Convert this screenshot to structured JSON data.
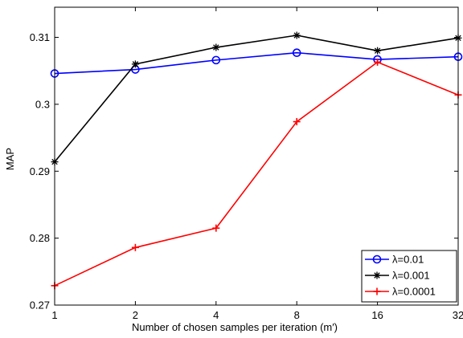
{
  "chart_data": {
    "type": "line",
    "xlabel": "Number of chosen samples per iteration (m′)",
    "ylabel": "MAP",
    "x": [
      1,
      2,
      4,
      8,
      16,
      32
    ],
    "x_tick_labels": [
      "1",
      "2",
      "4",
      "8",
      "16",
      "32"
    ],
    "x_scale": "log2",
    "ylim": [
      0.27,
      0.3145
    ],
    "y_ticks": [
      0.27,
      0.28,
      0.29,
      0.3,
      0.31
    ],
    "y_tick_labels": [
      "0.27",
      "0.28",
      "0.29",
      "0.3",
      "0.31"
    ],
    "grid": false,
    "legend_position": "bottom-right",
    "series": [
      {
        "name": "λ=0.01",
        "color": "#0000ff",
        "marker": "circle",
        "values": [
          0.3046,
          0.3052,
          0.3066,
          0.3077,
          0.3067,
          0.3071
        ]
      },
      {
        "name": "λ=0.001",
        "color": "#000000",
        "marker": "asterisk",
        "values": [
          0.2914,
          0.306,
          0.3085,
          0.3103,
          0.308,
          0.3099
        ]
      },
      {
        "name": "λ=0.0001",
        "color": "#ff0000",
        "marker": "plus",
        "values": [
          0.2729,
          0.2786,
          0.2815,
          0.2974,
          0.3063,
          0.3014
        ]
      }
    ]
  }
}
